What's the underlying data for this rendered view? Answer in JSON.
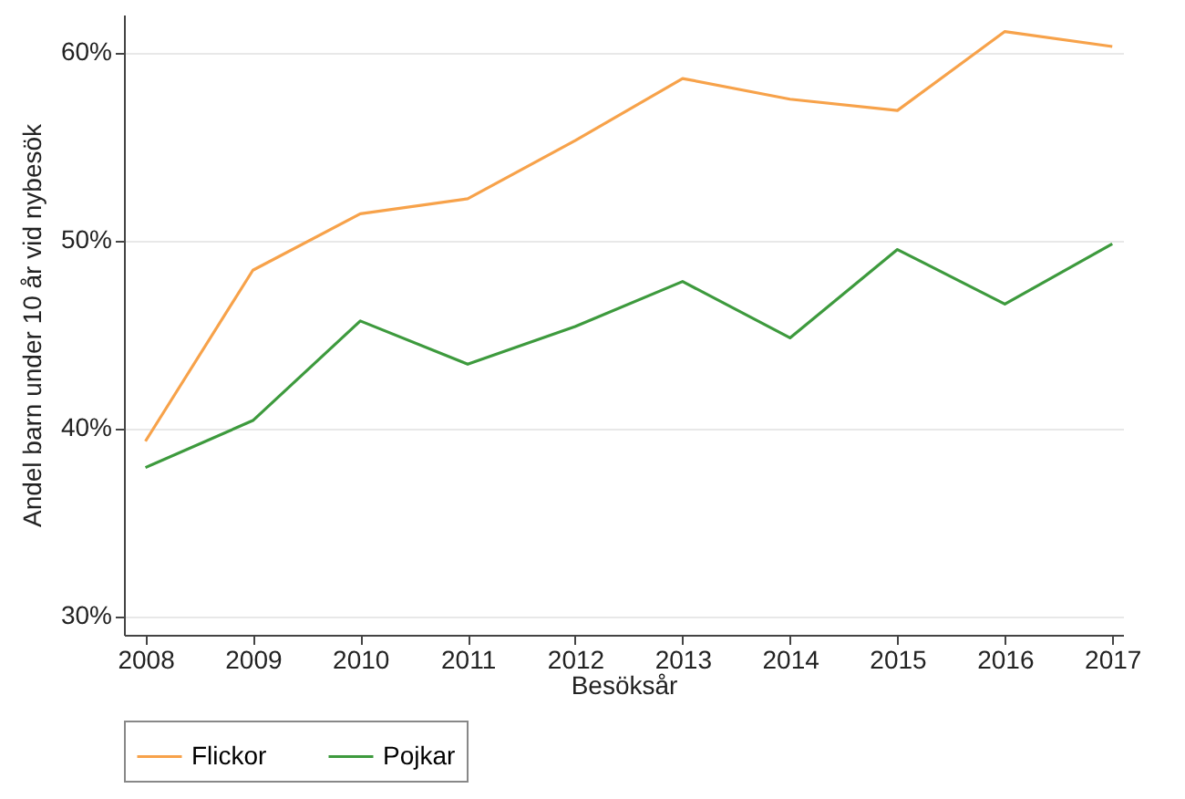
{
  "chart_data": {
    "type": "line",
    "xlabel": "Besöksår",
    "ylabel": "Andel barn under 10 år vid nybesök",
    "x": [
      2008,
      2009,
      2010,
      2011,
      2012,
      2013,
      2014,
      2015,
      2016,
      2017
    ],
    "series": [
      {
        "name": "Flickor",
        "color": "#f7a24a",
        "values": [
          39.3,
          48.4,
          51.4,
          52.2,
          55.3,
          58.6,
          57.5,
          56.9,
          61.1,
          60.3
        ]
      },
      {
        "name": "Pojkar",
        "color": "#3d9a3d",
        "values": [
          37.9,
          40.4,
          45.7,
          43.4,
          45.4,
          47.8,
          44.8,
          49.5,
          46.6,
          49.8
        ]
      }
    ],
    "xlim": [
      2007.8,
      2017.1
    ],
    "xticks": [
      2008,
      2009,
      2010,
      2011,
      2012,
      2013,
      2014,
      2015,
      2016,
      2017
    ],
    "ylim": [
      29,
      62
    ],
    "yticks": [
      {
        "value": 30,
        "label": "30%"
      },
      {
        "value": 40,
        "label": "40%"
      },
      {
        "value": 50,
        "label": "50%"
      },
      {
        "value": 60,
        "label": "60%"
      }
    ],
    "grid": "y",
    "legend": "bottom",
    "marker": "none",
    "line_style": "solid"
  }
}
